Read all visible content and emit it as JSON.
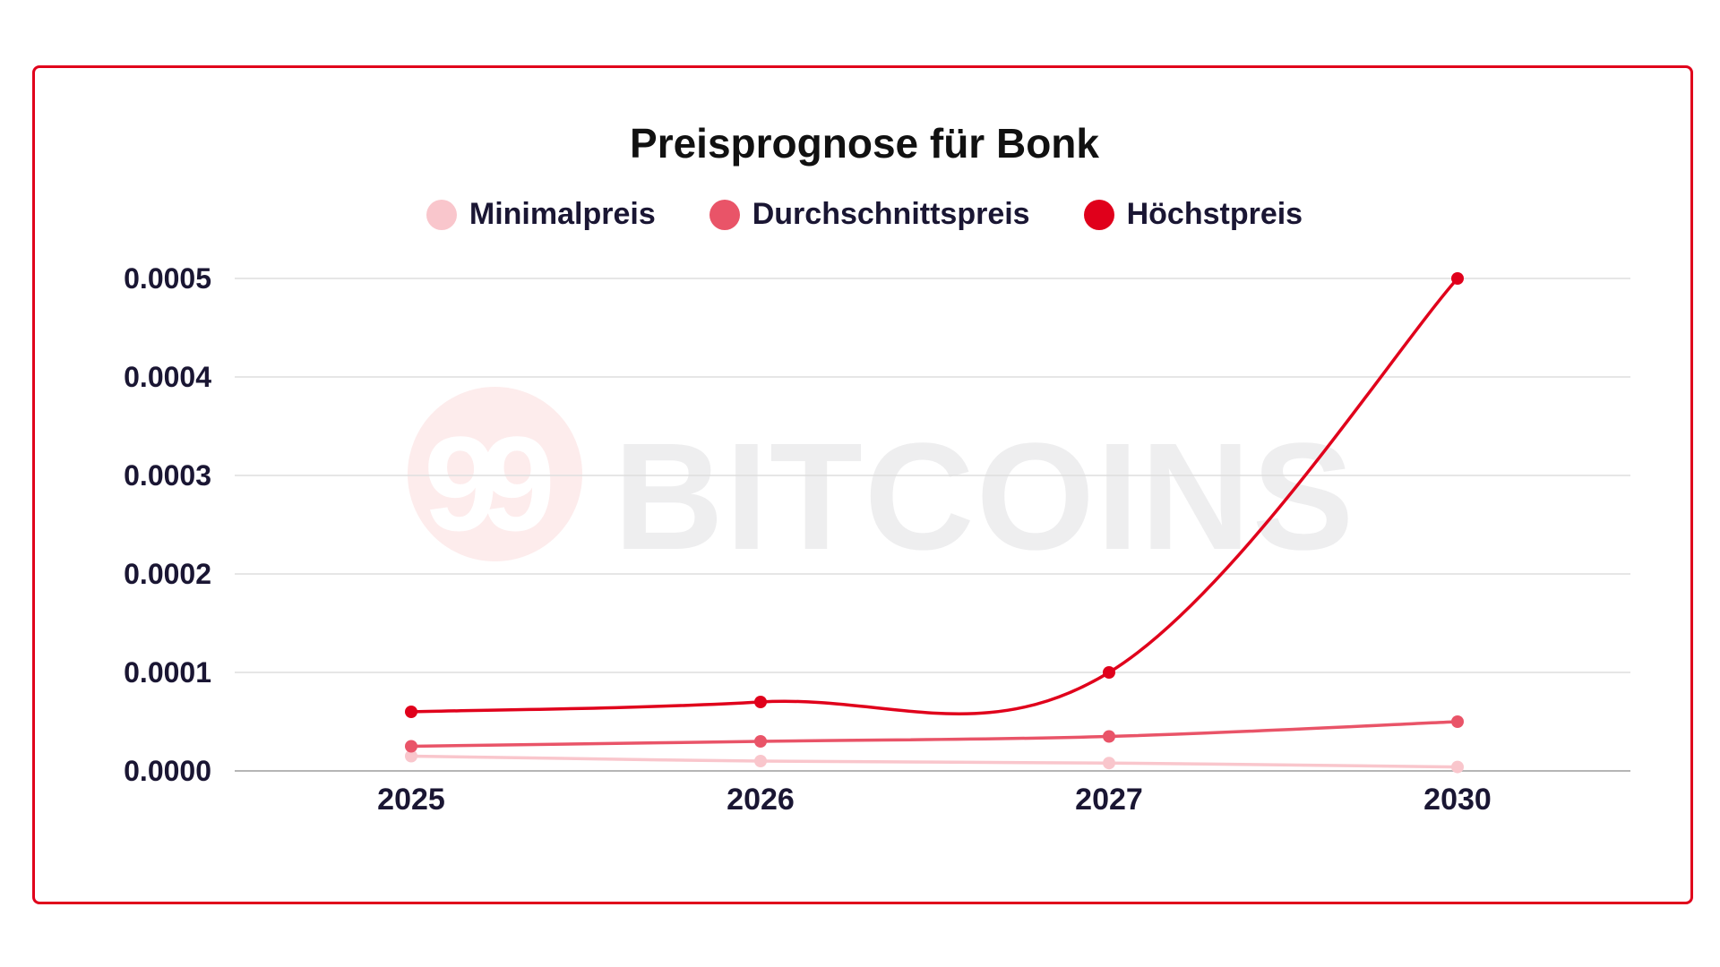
{
  "watermark": {
    "text": "BITCOINS",
    "number": "99"
  },
  "chart_data": {
    "type": "line",
    "title": "Preisprognose für Bonk",
    "xlabel": "",
    "ylabel": "",
    "categories": [
      "2025",
      "2026",
      "2027",
      "2030"
    ],
    "yticks": [
      "0.0000",
      "0.0001",
      "0.0002",
      "0.0003",
      "0.0004",
      "0.0005"
    ],
    "ylim": [
      0,
      0.0005
    ],
    "grid": true,
    "legend_position": "top-center",
    "series": [
      {
        "name": "Minimalpreis",
        "color": "#f9c6cc",
        "values": [
          1.5e-05,
          1e-05,
          8e-06,
          4e-06
        ]
      },
      {
        "name": "Durchschnittspreis",
        "color": "#e95468",
        "values": [
          2.5e-05,
          3e-05,
          3.5e-05,
          5e-05
        ]
      },
      {
        "name": "Höchstpreis",
        "color": "#e0001b",
        "values": [
          6e-05,
          7e-05,
          0.0001,
          0.0005
        ]
      }
    ]
  }
}
